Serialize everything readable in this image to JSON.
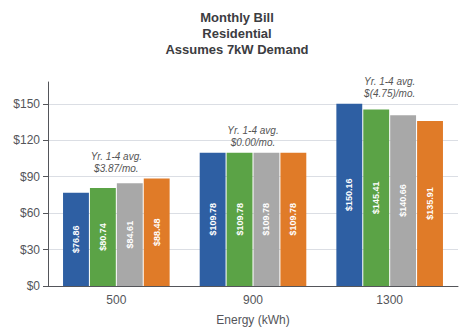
{
  "chart_data": {
    "type": "bar",
    "title": "Monthly Bill\nResidential\nAssumes 7kW Demand",
    "xlabel": "Energy (kWh)",
    "categories": [
      "500",
      "900",
      "1300"
    ],
    "series": [
      {
        "color": "#2E5FA3",
        "values": [
          76.86,
          109.78,
          150.16
        ],
        "value_labels": [
          "$76.86",
          "$109.78",
          "$150.16"
        ]
      },
      {
        "color": "#5BA346",
        "values": [
          80.74,
          109.78,
          145.41
        ],
        "value_labels": [
          "$80.74",
          "$109.78",
          "$145.41"
        ]
      },
      {
        "color": "#A8A8A8",
        "values": [
          84.61,
          109.78,
          140.66
        ],
        "value_labels": [
          "$84.61",
          "$109.78",
          "$140.66"
        ]
      },
      {
        "color": "#E07B28",
        "values": [
          88.48,
          109.78,
          135.91
        ],
        "value_labels": [
          "$88.48",
          "$109.78",
          "$135.91"
        ]
      }
    ],
    "ylim": [
      0,
      168
    ],
    "yticks": [
      {
        "value": 0,
        "label": "$0"
      },
      {
        "value": 30,
        "label": "$30"
      },
      {
        "value": 60,
        "label": "$60"
      },
      {
        "value": 90,
        "label": "$90"
      },
      {
        "value": 120,
        "label": "$120"
      },
      {
        "value": 150,
        "label": "$150"
      }
    ],
    "grid": true,
    "data_labels": true,
    "annotations": [
      {
        "category": "500",
        "text": "Yr. 1-4 avg.\n$3.87/mo."
      },
      {
        "category": "900",
        "text": "Yr. 1-4 avg.\n$0.00/mo."
      },
      {
        "category": "1300",
        "text": "Yr. 1-4 avg.\n$(4.75)/mo."
      }
    ]
  }
}
